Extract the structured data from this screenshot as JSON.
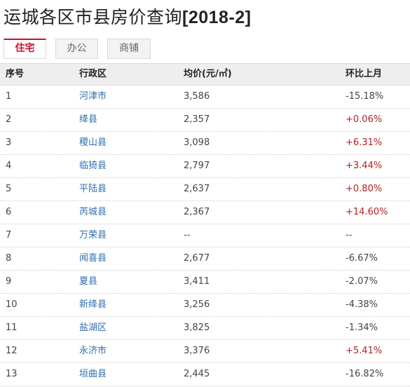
{
  "title": {
    "prefix": "运城各区市县房价查询",
    "period": "[2018-2]"
  },
  "tabs": [
    {
      "label": "住宅",
      "active": true
    },
    {
      "label": "办公",
      "active": false
    },
    {
      "label": "商铺",
      "active": false
    }
  ],
  "table": {
    "headers": [
      "序号",
      "行政区",
      "均价(元/㎡)",
      "环比上月"
    ],
    "rows": [
      {
        "no": "1",
        "district": "河津市",
        "price": "3,586",
        "change": "-15.18%",
        "trend": "down"
      },
      {
        "no": "2",
        "district": "绛县",
        "price": "2,357",
        "change": "+0.06%",
        "trend": "up"
      },
      {
        "no": "3",
        "district": "稷山县",
        "price": "3,098",
        "change": "+6.31%",
        "trend": "up"
      },
      {
        "no": "4",
        "district": "临猗县",
        "price": "2,797",
        "change": "+3.44%",
        "trend": "up"
      },
      {
        "no": "5",
        "district": "平陆县",
        "price": "2,637",
        "change": "+0.80%",
        "trend": "up"
      },
      {
        "no": "6",
        "district": "芮城县",
        "price": "2,367",
        "change": "+14.60%",
        "trend": "up"
      },
      {
        "no": "7",
        "district": "万荣县",
        "price": "--",
        "change": "--",
        "trend": "none"
      },
      {
        "no": "8",
        "district": "闻喜县",
        "price": "2,677",
        "change": "-6.67%",
        "trend": "down"
      },
      {
        "no": "9",
        "district": "夏县",
        "price": "3,411",
        "change": "-2.07%",
        "trend": "down"
      },
      {
        "no": "10",
        "district": "新绛县",
        "price": "3,256",
        "change": "-4.38%",
        "trend": "down"
      },
      {
        "no": "11",
        "district": "盐湖区",
        "price": "3,825",
        "change": "-1.34%",
        "trend": "down"
      },
      {
        "no": "12",
        "district": "永济市",
        "price": "3,376",
        "change": "+5.41%",
        "trend": "up"
      },
      {
        "no": "13",
        "district": "垣曲县",
        "price": "2,445",
        "change": "-16.82%",
        "trend": "down"
      }
    ]
  },
  "colors": {
    "accent": "#c8102e",
    "link": "#2f6fae",
    "up": "#b22222",
    "header_bg": "#eeeeee"
  }
}
